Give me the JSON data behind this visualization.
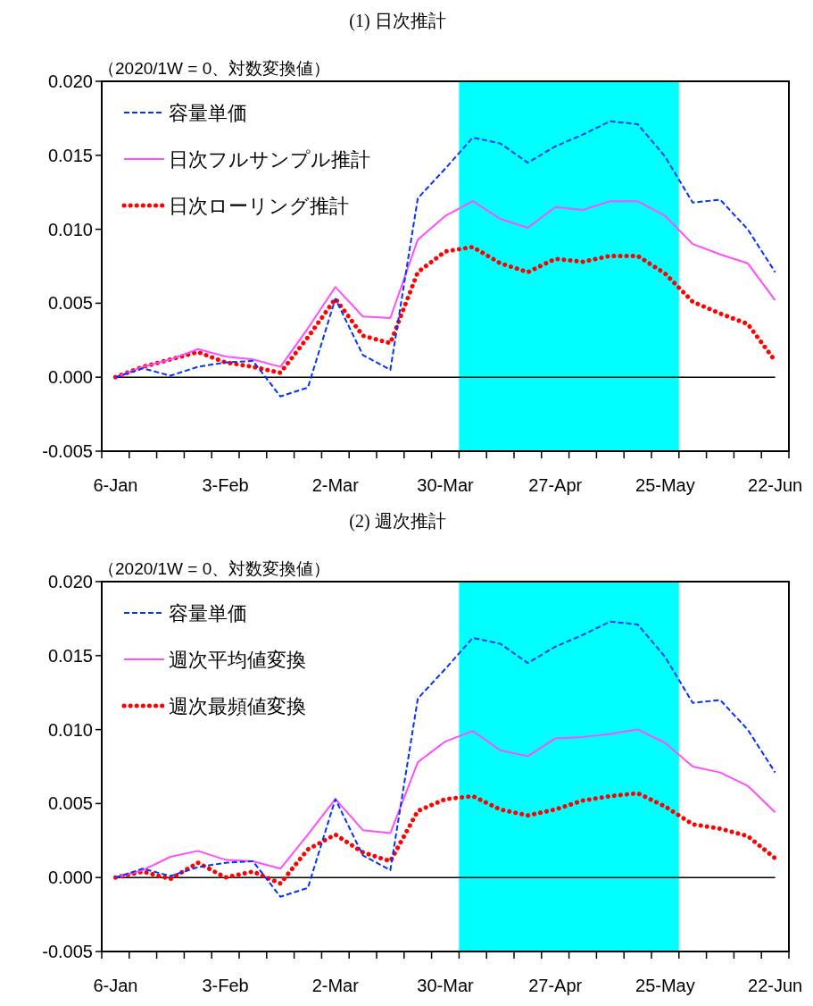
{
  "chart_data": [
    {
      "type": "line",
      "title": "(1)  日次推計",
      "ylabel": "（2020/1W = 0、対数変換値）",
      "x": [
        "2020-01-06",
        "2020-01-13",
        "2020-01-20",
        "2020-01-27",
        "2020-02-03",
        "2020-02-10",
        "2020-02-17",
        "2020-02-24",
        "2020-03-02",
        "2020-03-09",
        "2020-03-16",
        "2020-03-23",
        "2020-03-30",
        "2020-04-06",
        "2020-04-13",
        "2020-04-20",
        "2020-04-27",
        "2020-05-04",
        "2020-05-11",
        "2020-05-18",
        "2020-05-25",
        "2020-06-01",
        "2020-06-08",
        "2020-06-15",
        "2020-06-22"
      ],
      "series": [
        {
          "name": "容量単価",
          "color": "#0033ff",
          "line_style": "dashed",
          "values": [
            0,
            0.0006,
            0.0001,
            0.0007,
            0.001,
            0.0011,
            -0.0013,
            -0.0007,
            0.0053,
            0.0015,
            0.0005,
            0.0121,
            0.0141,
            0.0162,
            0.0158,
            0.0145,
            0.0156,
            0.0164,
            0.0173,
            0.0171,
            0.0149,
            0.0118,
            0.012,
            0.01,
            0.0071
          ]
        },
        {
          "name": "日次フルサンプル推計",
          "color": "#ff4dff",
          "line_style": "solid",
          "values": [
            0,
            0.0007,
            0.0012,
            0.0019,
            0.0014,
            0.0012,
            0.0007,
            0.0033,
            0.0061,
            0.0041,
            0.004,
            0.0093,
            0.0109,
            0.0119,
            0.0107,
            0.0101,
            0.0115,
            0.0113,
            0.0119,
            0.0119,
            0.0109,
            0.009,
            0.0083,
            0.0077,
            0.0052
          ]
        },
        {
          "name": "日次ローリング推計",
          "color": "#ff0000",
          "line_style": "dotted",
          "values": [
            0,
            0.0007,
            0.0012,
            0.0017,
            0.001,
            0.0007,
            0.0003,
            0.0027,
            0.0053,
            0.0028,
            0.0023,
            0.0071,
            0.0085,
            0.0088,
            0.0077,
            0.0071,
            0.008,
            0.0078,
            0.0082,
            0.0082,
            0.007,
            0.0051,
            0.0043,
            0.0036,
            0.0011
          ]
        }
      ],
      "xlim": [
        "2020-01-02T12:00",
        "2020-06-25T12:00"
      ],
      "xticks": [
        {
          "value": "2020-01-06",
          "label": "6-Jan"
        },
        {
          "value": "2020-02-03",
          "label": "3-Feb"
        },
        {
          "value": "2020-03-02",
          "label": "2-Mar"
        },
        {
          "value": "2020-03-30",
          "label": "30-Mar"
        },
        {
          "value": "2020-04-27",
          "label": "27-Apr"
        },
        {
          "value": "2020-05-25",
          "label": "25-May"
        },
        {
          "value": "2020-06-22",
          "label": "22-Jun"
        },
        {
          "value": "2020-01-02T12:00",
          "label": null
        },
        {
          "value": "2020-01-09T12:00",
          "label": null
        },
        {
          "value": "2020-01-16T12:00",
          "label": null
        },
        {
          "value": "2020-01-23T12:00",
          "label": null
        },
        {
          "value": "2020-01-30T12:00",
          "label": null
        },
        {
          "value": "2020-02-06T12:00",
          "label": null
        },
        {
          "value": "2020-02-13T12:00",
          "label": null
        },
        {
          "value": "2020-02-20T12:00",
          "label": null
        },
        {
          "value": "2020-02-27T12:00",
          "label": null
        },
        {
          "value": "2020-03-05T12:00",
          "label": null
        },
        {
          "value": "2020-03-12T12:00",
          "label": null
        },
        {
          "value": "2020-03-19T12:00",
          "label": null
        },
        {
          "value": "2020-03-26T12:00",
          "label": null
        },
        {
          "value": "2020-04-02T12:00",
          "label": null
        },
        {
          "value": "2020-04-09T12:00",
          "label": null
        },
        {
          "value": "2020-04-16T12:00",
          "label": null
        },
        {
          "value": "2020-04-23T12:00",
          "label": null
        },
        {
          "value": "2020-04-30T12:00",
          "label": null
        },
        {
          "value": "2020-05-07T12:00",
          "label": null
        },
        {
          "value": "2020-05-14T12:00",
          "label": null
        },
        {
          "value": "2020-05-21T12:00",
          "label": null
        },
        {
          "value": "2020-05-28T12:00",
          "label": null
        },
        {
          "value": "2020-06-04T12:00",
          "label": null
        },
        {
          "value": "2020-06-11T12:00",
          "label": null
        },
        {
          "value": "2020-06-18T12:00",
          "label": null
        },
        {
          "value": "2020-06-25T12:00",
          "label": null
        }
      ],
      "ylim": [
        -0.005,
        0.02
      ],
      "yticks": [
        {
          "value": -0.005,
          "label": "-0.005"
        },
        {
          "value": 0,
          "label": "0.000"
        },
        {
          "value": 0.005,
          "label": "0.005"
        },
        {
          "value": 0.01,
          "label": "0.010"
        },
        {
          "value": 0.015,
          "label": "0.015"
        },
        {
          "value": 0.02,
          "label": "0.020"
        }
      ],
      "bands": [
        {
          "axis": "x",
          "from": "2020-04-02T12:00",
          "to": "2020-05-28T12:00",
          "color": "#00ffff"
        }
      ],
      "ref_lines": [
        {
          "axis": "y",
          "value": 0,
          "color": "#000000"
        }
      ],
      "legend": "top left",
      "grid": false
    },
    {
      "type": "line",
      "title": "(2)  週次推計",
      "ylabel": "（2020/1W = 0、対数変換値）",
      "x": [
        "2020-01-06",
        "2020-01-13",
        "2020-01-20",
        "2020-01-27",
        "2020-02-03",
        "2020-02-10",
        "2020-02-17",
        "2020-02-24",
        "2020-03-02",
        "2020-03-09",
        "2020-03-16",
        "2020-03-23",
        "2020-03-30",
        "2020-04-06",
        "2020-04-13",
        "2020-04-20",
        "2020-04-27",
        "2020-05-04",
        "2020-05-11",
        "2020-05-18",
        "2020-05-25",
        "2020-06-01",
        "2020-06-08",
        "2020-06-15",
        "2020-06-22"
      ],
      "series": [
        {
          "name": "容量単価",
          "color": "#0033ff",
          "line_style": "dashed",
          "values": [
            0,
            0.0006,
            0.0001,
            0.0007,
            0.001,
            0.0011,
            -0.0013,
            -0.0007,
            0.0053,
            0.0015,
            0.0005,
            0.0121,
            0.0141,
            0.0162,
            0.0158,
            0.0145,
            0.0156,
            0.0164,
            0.0173,
            0.0171,
            0.0149,
            0.0118,
            0.012,
            0.01,
            0.0071
          ]
        },
        {
          "name": "週次平均値変換",
          "color": "#ff4dff",
          "line_style": "solid",
          "values": [
            0,
            0.0005,
            0.0014,
            0.0018,
            0.0012,
            0.0011,
            0.0006,
            0.0029,
            0.0053,
            0.0032,
            0.003,
            0.0078,
            0.0092,
            0.0099,
            0.0086,
            0.0082,
            0.0094,
            0.0095,
            0.0097,
            0.01,
            0.0091,
            0.0075,
            0.0071,
            0.0062,
            0.0044
          ]
        },
        {
          "name": "週次最頻値変換",
          "color": "#ff0000",
          "line_style": "dotted",
          "values": [
            0,
            0.0004,
            -0.0001,
            0.001,
            0,
            0.0004,
            -0.0004,
            0.0019,
            0.0029,
            0.0017,
            0.0011,
            0.0045,
            0.0053,
            0.0055,
            0.0046,
            0.0042,
            0.0046,
            0.0052,
            0.0055,
            0.0057,
            0.0048,
            0.0036,
            0.0033,
            0.0028,
            0.0013
          ]
        }
      ],
      "xlim": [
        "2020-01-02T12:00",
        "2020-06-25T12:00"
      ],
      "xticks": [
        {
          "value": "2020-01-06",
          "label": "6-Jan"
        },
        {
          "value": "2020-02-03",
          "label": "3-Feb"
        },
        {
          "value": "2020-03-02",
          "label": "2-Mar"
        },
        {
          "value": "2020-03-30",
          "label": "30-Mar"
        },
        {
          "value": "2020-04-27",
          "label": "27-Apr"
        },
        {
          "value": "2020-05-25",
          "label": "25-May"
        },
        {
          "value": "2020-06-22",
          "label": "22-Jun"
        },
        {
          "value": "2020-01-02T12:00",
          "label": null
        },
        {
          "value": "2020-01-09T12:00",
          "label": null
        },
        {
          "value": "2020-01-16T12:00",
          "label": null
        },
        {
          "value": "2020-01-23T12:00",
          "label": null
        },
        {
          "value": "2020-01-30T12:00",
          "label": null
        },
        {
          "value": "2020-02-06T12:00",
          "label": null
        },
        {
          "value": "2020-02-13T12:00",
          "label": null
        },
        {
          "value": "2020-02-20T12:00",
          "label": null
        },
        {
          "value": "2020-02-27T12:00",
          "label": null
        },
        {
          "value": "2020-03-05T12:00",
          "label": null
        },
        {
          "value": "2020-03-12T12:00",
          "label": null
        },
        {
          "value": "2020-03-19T12:00",
          "label": null
        },
        {
          "value": "2020-03-26T12:00",
          "label": null
        },
        {
          "value": "2020-04-02T12:00",
          "label": null
        },
        {
          "value": "2020-04-09T12:00",
          "label": null
        },
        {
          "value": "2020-04-16T12:00",
          "label": null
        },
        {
          "value": "2020-04-23T12:00",
          "label": null
        },
        {
          "value": "2020-04-30T12:00",
          "label": null
        },
        {
          "value": "2020-05-07T12:00",
          "label": null
        },
        {
          "value": "2020-05-14T12:00",
          "label": null
        },
        {
          "value": "2020-05-21T12:00",
          "label": null
        },
        {
          "value": "2020-05-28T12:00",
          "label": null
        },
        {
          "value": "2020-06-04T12:00",
          "label": null
        },
        {
          "value": "2020-06-11T12:00",
          "label": null
        },
        {
          "value": "2020-06-18T12:00",
          "label": null
        },
        {
          "value": "2020-06-25T12:00",
          "label": null
        }
      ],
      "ylim": [
        -0.005,
        0.02
      ],
      "yticks": [
        {
          "value": -0.005,
          "label": "-0.005"
        },
        {
          "value": 0,
          "label": "0.000"
        },
        {
          "value": 0.005,
          "label": "0.005"
        },
        {
          "value": 0.01,
          "label": "0.010"
        },
        {
          "value": 0.015,
          "label": "0.015"
        },
        {
          "value": 0.02,
          "label": "0.020"
        }
      ],
      "bands": [
        {
          "axis": "x",
          "from": "2020-04-02T12:00",
          "to": "2020-05-28T12:00",
          "color": "#00ffff"
        }
      ],
      "ref_lines": [
        {
          "axis": "y",
          "value": 0,
          "color": "#000000"
        }
      ],
      "legend": "top left",
      "grid": false
    }
  ]
}
